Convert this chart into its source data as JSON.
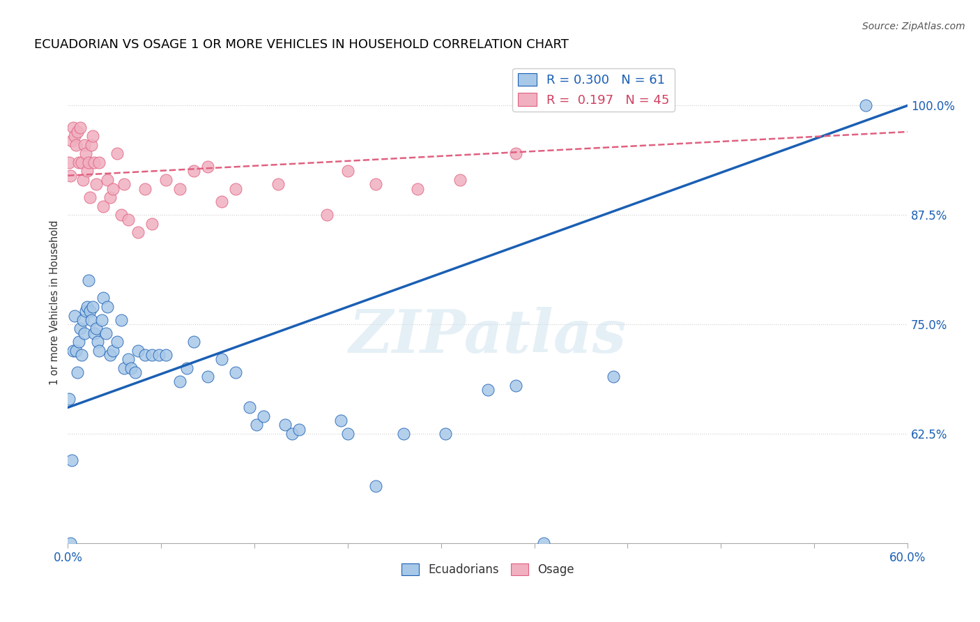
{
  "title": "ECUADORIAN VS OSAGE 1 OR MORE VEHICLES IN HOUSEHOLD CORRELATION CHART",
  "source": "Source: ZipAtlas.com",
  "ylabel": "1 or more Vehicles in Household",
  "xlim": [
    0.0,
    0.6
  ],
  "ylim": [
    0.5,
    1.05
  ],
  "r_ecuadorian": 0.3,
  "n_ecuadorian": 61,
  "r_osage": 0.197,
  "n_osage": 45,
  "ecuadorian_color": "#a8c8e8",
  "osage_color": "#f0b0c0",
  "trendline_ecuadorian_color": "#1a5fb4",
  "trendline_osage_color": "#e06080",
  "watermark_text": "ZIPatlas",
  "ytick_vals": [
    0.625,
    0.75,
    0.875,
    1.0
  ],
  "ytick_labels": [
    "62.5%",
    "75.0%",
    "87.5%",
    "100.0%"
  ],
  "ecuadorians_scatter": [
    [
      0.001,
      0.665
    ],
    [
      0.002,
      0.5
    ],
    [
      0.003,
      0.595
    ],
    [
      0.004,
      0.72
    ],
    [
      0.005,
      0.76
    ],
    [
      0.006,
      0.72
    ],
    [
      0.007,
      0.695
    ],
    [
      0.008,
      0.73
    ],
    [
      0.009,
      0.745
    ],
    [
      0.01,
      0.715
    ],
    [
      0.011,
      0.755
    ],
    [
      0.012,
      0.74
    ],
    [
      0.013,
      0.765
    ],
    [
      0.014,
      0.77
    ],
    [
      0.015,
      0.8
    ],
    [
      0.016,
      0.765
    ],
    [
      0.017,
      0.755
    ],
    [
      0.018,
      0.77
    ],
    [
      0.019,
      0.74
    ],
    [
      0.02,
      0.745
    ],
    [
      0.021,
      0.73
    ],
    [
      0.022,
      0.72
    ],
    [
      0.024,
      0.755
    ],
    [
      0.025,
      0.78
    ],
    [
      0.027,
      0.74
    ],
    [
      0.028,
      0.77
    ],
    [
      0.03,
      0.715
    ],
    [
      0.032,
      0.72
    ],
    [
      0.035,
      0.73
    ],
    [
      0.038,
      0.755
    ],
    [
      0.04,
      0.7
    ],
    [
      0.043,
      0.71
    ],
    [
      0.045,
      0.7
    ],
    [
      0.048,
      0.695
    ],
    [
      0.05,
      0.72
    ],
    [
      0.055,
      0.715
    ],
    [
      0.06,
      0.715
    ],
    [
      0.065,
      0.715
    ],
    [
      0.07,
      0.715
    ],
    [
      0.08,
      0.685
    ],
    [
      0.085,
      0.7
    ],
    [
      0.09,
      0.73
    ],
    [
      0.1,
      0.69
    ],
    [
      0.11,
      0.71
    ],
    [
      0.12,
      0.695
    ],
    [
      0.13,
      0.655
    ],
    [
      0.135,
      0.635
    ],
    [
      0.14,
      0.645
    ],
    [
      0.155,
      0.635
    ],
    [
      0.16,
      0.625
    ],
    [
      0.165,
      0.63
    ],
    [
      0.195,
      0.64
    ],
    [
      0.2,
      0.625
    ],
    [
      0.22,
      0.565
    ],
    [
      0.24,
      0.625
    ],
    [
      0.27,
      0.625
    ],
    [
      0.3,
      0.675
    ],
    [
      0.32,
      0.68
    ],
    [
      0.34,
      0.5
    ],
    [
      0.39,
      0.69
    ],
    [
      0.57,
      1.0
    ]
  ],
  "osage_scatter": [
    [
      0.001,
      0.935
    ],
    [
      0.002,
      0.92
    ],
    [
      0.003,
      0.96
    ],
    [
      0.004,
      0.975
    ],
    [
      0.005,
      0.965
    ],
    [
      0.006,
      0.955
    ],
    [
      0.007,
      0.97
    ],
    [
      0.008,
      0.935
    ],
    [
      0.009,
      0.975
    ],
    [
      0.01,
      0.935
    ],
    [
      0.011,
      0.915
    ],
    [
      0.012,
      0.955
    ],
    [
      0.013,
      0.945
    ],
    [
      0.014,
      0.925
    ],
    [
      0.015,
      0.935
    ],
    [
      0.016,
      0.895
    ],
    [
      0.017,
      0.955
    ],
    [
      0.018,
      0.965
    ],
    [
      0.019,
      0.935
    ],
    [
      0.02,
      0.91
    ],
    [
      0.022,
      0.935
    ],
    [
      0.025,
      0.885
    ],
    [
      0.028,
      0.915
    ],
    [
      0.03,
      0.895
    ],
    [
      0.032,
      0.905
    ],
    [
      0.035,
      0.945
    ],
    [
      0.038,
      0.875
    ],
    [
      0.04,
      0.91
    ],
    [
      0.043,
      0.87
    ],
    [
      0.05,
      0.855
    ],
    [
      0.055,
      0.905
    ],
    [
      0.06,
      0.865
    ],
    [
      0.07,
      0.915
    ],
    [
      0.08,
      0.905
    ],
    [
      0.09,
      0.925
    ],
    [
      0.1,
      0.93
    ],
    [
      0.11,
      0.89
    ],
    [
      0.12,
      0.905
    ],
    [
      0.15,
      0.91
    ],
    [
      0.185,
      0.875
    ],
    [
      0.2,
      0.925
    ],
    [
      0.22,
      0.91
    ],
    [
      0.25,
      0.905
    ],
    [
      0.28,
      0.915
    ],
    [
      0.32,
      0.945
    ]
  ]
}
